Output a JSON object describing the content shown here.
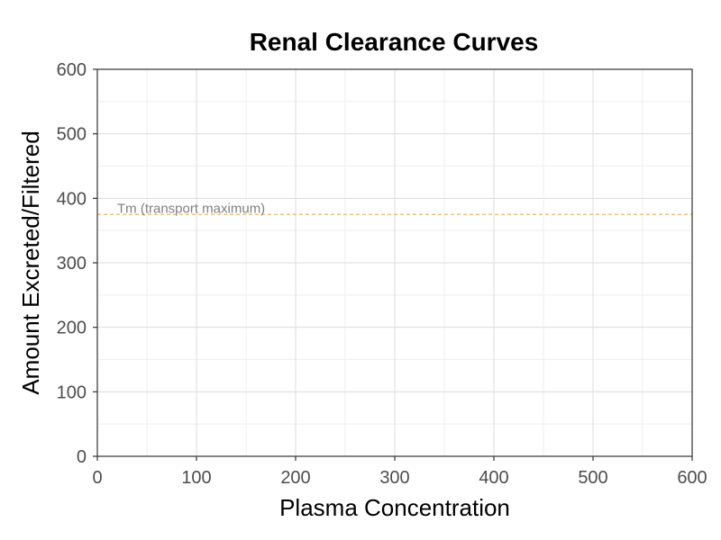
{
  "chart_data": {
    "type": "line",
    "title": "Renal Clearance Curves",
    "xlabel": "Plasma Concentration",
    "ylabel": "Amount Excreted/Filtered",
    "xlim": [
      0,
      600
    ],
    "ylim": [
      0,
      600
    ],
    "x_ticks": [
      "0",
      "100",
      "200",
      "300",
      "400",
      "500",
      "600"
    ],
    "y_ticks": [
      "0",
      "100",
      "200",
      "300",
      "400",
      "500",
      "600"
    ],
    "grid": true,
    "series": [],
    "reference_lines": [
      {
        "type": "horizontal",
        "y": 375,
        "color": "#e8b86d",
        "style": "dashed",
        "label": "Tm (transport maximum)",
        "label_x": 20
      }
    ]
  }
}
